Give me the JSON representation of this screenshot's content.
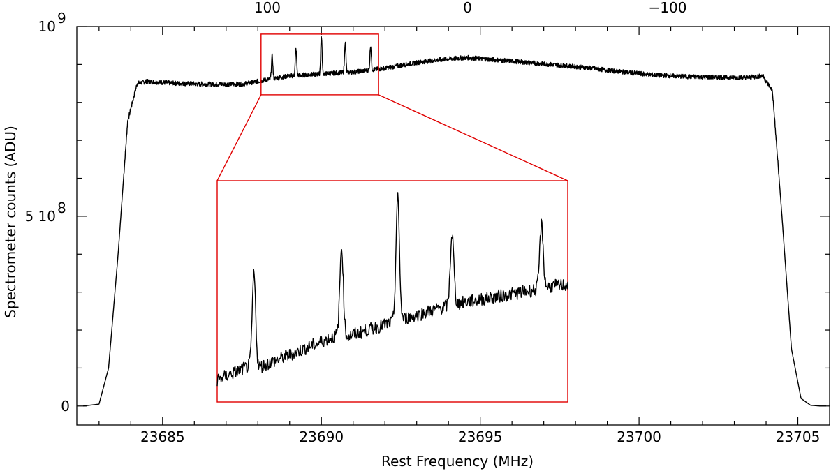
{
  "chart_data": {
    "type": "line",
    "xlabel": "Rest Frequency (MHz)",
    "ylabel": "Spectrometer counts (ADU)",
    "xlim": [
      23682.3,
      23706.0
    ],
    "ylim": [
      -50000000,
      1000000000
    ],
    "x_ticks": [
      {
        "value": 23685,
        "label": "23685"
      },
      {
        "value": 23690,
        "label": "23690"
      },
      {
        "value": 23695,
        "label": "23695"
      },
      {
        "value": 23700,
        "label": "23700"
      },
      {
        "value": 23705,
        "label": "23705"
      }
    ],
    "y_ticks": [
      {
        "value": 0,
        "label": "0"
      },
      {
        "value": 500000000,
        "label": "5 10",
        "exp": "8"
      },
      {
        "value": 1000000000,
        "label": "10",
        "exp": "9"
      }
    ],
    "top_axis": {
      "ticks": [
        {
          "value": 23688.3,
          "label": "100"
        },
        {
          "value": 23694.6,
          "label": "0"
        },
        {
          "value": 23700.9,
          "label": "−100"
        }
      ]
    },
    "series": [
      {
        "values_x": [
          23682.5,
          23683.0,
          23683.3,
          23683.6,
          23683.9,
          23684.2,
          23684.5,
          23685.5,
          23686.5,
          23687.5,
          23688.3,
          23689.0,
          23690.0,
          23691.0,
          23692.0,
          23693.0,
          23694.0,
          23694.6,
          23695.5,
          23696.5,
          23697.5,
          23698.5,
          23699.5,
          23700.5,
          23701.5,
          23702.5,
          23703.5,
          23703.9,
          23704.2,
          23704.5,
          23704.8,
          23705.1,
          23705.4,
          23705.7,
          23705.9
        ],
        "values_y": [
          0,
          5000000,
          100000000,
          400000000,
          750000000,
          850000000,
          855000000,
          850000000,
          848000000,
          848000000,
          860000000,
          870000000,
          875000000,
          880000000,
          890000000,
          905000000,
          915000000,
          918000000,
          912000000,
          905000000,
          898000000,
          890000000,
          880000000,
          872000000,
          868000000,
          866000000,
          866000000,
          870000000,
          830000000,
          500000000,
          150000000,
          20000000,
          2000000,
          0,
          0
        ]
      }
    ],
    "lines": [
      {
        "x": 23688.45,
        "height": 60000000
      },
      {
        "x": 23689.2,
        "height": 70000000
      },
      {
        "x": 23690.0,
        "height": 100000000
      },
      {
        "x": 23690.75,
        "height": 80000000
      },
      {
        "x": 23691.55,
        "height": 65000000
      }
    ],
    "zoom_box": {
      "xlim": [
        23688.1,
        23691.8
      ],
      "ylim": [
        820000000,
        980000000
      ]
    },
    "inset_series": {
      "x": [
        0.0,
        0.09,
        0.11,
        0.34,
        0.36,
        0.5,
        0.52,
        0.65,
        0.67,
        0.92,
        0.94,
        1.0
      ],
      "y": [
        0.1,
        0.16,
        0.15,
        0.3,
        0.29,
        0.36,
        0.37,
        0.43,
        0.44,
        0.51,
        0.52,
        0.53
      ],
      "peaks": [
        {
          "x": 0.105,
          "h": 0.58
        },
        {
          "x": 0.355,
          "h": 0.7
        },
        {
          "x": 0.515,
          "h": 0.92
        },
        {
          "x": 0.67,
          "h": 0.76
        },
        {
          "x": 0.925,
          "h": 0.8
        }
      ]
    },
    "grid": false,
    "legend": false
  }
}
